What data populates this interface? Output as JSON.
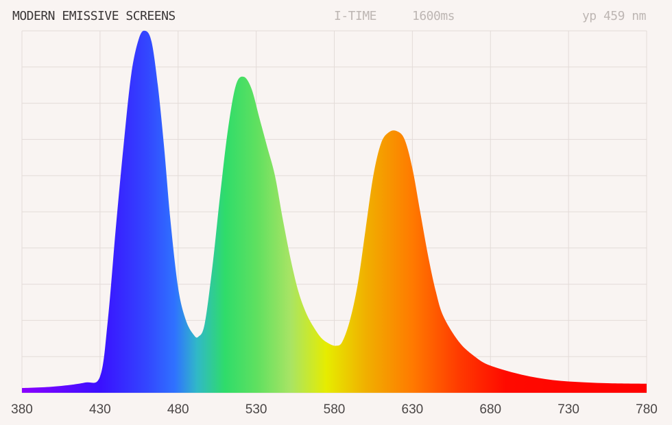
{
  "header": {
    "title": "MODERN EMISSIVE SCREENS",
    "itime_label": "I-TIME",
    "itime_value": "1600ms",
    "peak_readout": "yp 459 nm"
  },
  "chart_data": {
    "type": "area",
    "title": "MODERN EMISSIVE SCREENS",
    "xlabel": "",
    "ylabel": "",
    "xlim": [
      380,
      780
    ],
    "ylim": [
      0,
      1
    ],
    "x_ticks": [
      "380",
      "430",
      "480",
      "530",
      "580",
      "630",
      "680",
      "730",
      "780"
    ],
    "y_gridlines": 10,
    "grid": true,
    "fill": "visible spectrum gradient",
    "peaks_nm": [
      459,
      522,
      620
    ],
    "x": [
      380,
      400,
      420,
      430,
      435,
      440,
      445,
      450,
      455,
      459,
      463,
      467,
      471,
      475,
      480,
      485,
      490,
      493,
      497,
      502,
      507,
      512,
      517,
      522,
      527,
      532,
      537,
      542,
      547,
      552,
      557,
      562,
      567,
      572,
      577,
      581,
      585,
      590,
      595,
      600,
      605,
      610,
      615,
      620,
      625,
      630,
      635,
      640,
      645,
      650,
      660,
      670,
      680,
      700,
      720,
      740,
      760,
      780
    ],
    "y": [
      0.013,
      0.017,
      0.028,
      0.045,
      0.2,
      0.45,
      0.68,
      0.88,
      0.98,
      1.0,
      0.97,
      0.85,
      0.68,
      0.48,
      0.29,
      0.2,
      0.16,
      0.155,
      0.19,
      0.35,
      0.55,
      0.73,
      0.85,
      0.873,
      0.84,
      0.76,
      0.68,
      0.6,
      0.48,
      0.37,
      0.28,
      0.22,
      0.18,
      0.15,
      0.135,
      0.13,
      0.14,
      0.2,
      0.3,
      0.45,
      0.6,
      0.69,
      0.72,
      0.723,
      0.7,
      0.62,
      0.5,
      0.38,
      0.28,
      0.21,
      0.14,
      0.1,
      0.075,
      0.05,
      0.035,
      0.029,
      0.026,
      0.025
    ],
    "spectrum_colors": [
      {
        "nm": 380,
        "color": "#8a00ff"
      },
      {
        "nm": 430,
        "color": "#3a10ff"
      },
      {
        "nm": 460,
        "color": "#3346ff"
      },
      {
        "nm": 478,
        "color": "#2f72ff"
      },
      {
        "nm": 492,
        "color": "#30b8c8"
      },
      {
        "nm": 510,
        "color": "#2fdc6a"
      },
      {
        "nm": 530,
        "color": "#5ee060"
      },
      {
        "nm": 552,
        "color": "#a8e464"
      },
      {
        "nm": 575,
        "color": "#e6ec00"
      },
      {
        "nm": 600,
        "color": "#f0b000"
      },
      {
        "nm": 630,
        "color": "#ff7a00"
      },
      {
        "nm": 660,
        "color": "#ff3a00"
      },
      {
        "nm": 690,
        "color": "#ff0a00"
      },
      {
        "nm": 780,
        "color": "#ff0000"
      }
    ],
    "background": "#f9f4f2",
    "grid_color": "#e3dbd8"
  }
}
